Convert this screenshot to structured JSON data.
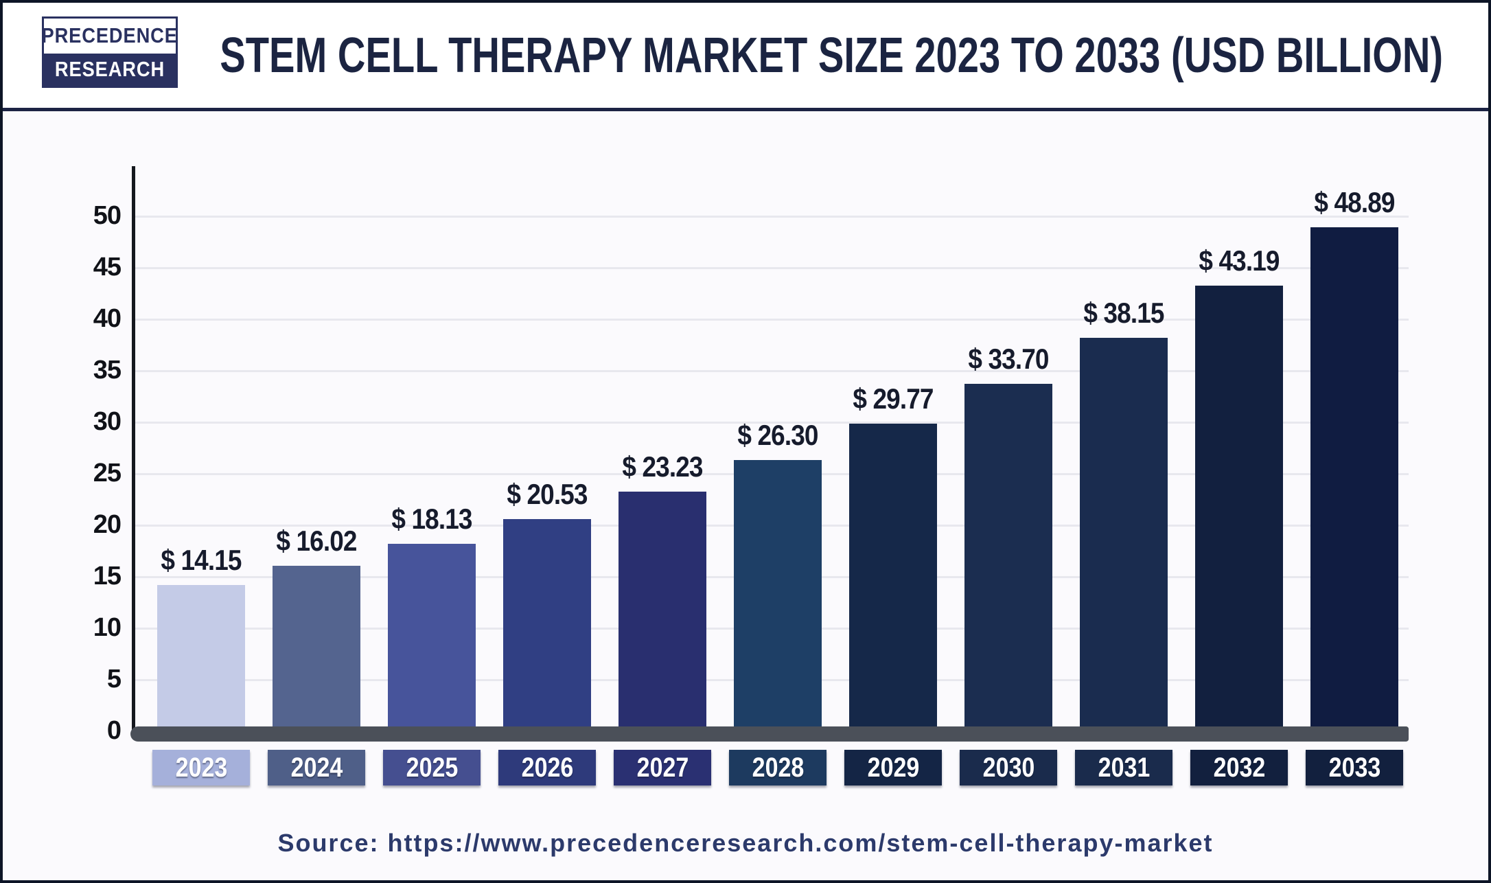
{
  "page": {
    "logo": {
      "line1": "PRECEDENCE",
      "line2": "RESEARCH"
    },
    "title": "STEM CELL THERAPY MARKET SIZE 2023 TO 2033 (USD BILLION)",
    "source": "Source: https://www.precedenceresearch.com/stem-cell-therapy-market"
  },
  "colors": {
    "border": "#0d1526",
    "header_rule": "#1c2344",
    "logo_navy": "#2a3160",
    "title_text": "#1b2441",
    "axis_line": "#15181e",
    "baseline": "#4b5059",
    "gridline": "#e8e8ee",
    "value_label_text": "#161b2c",
    "source_text": "#2c3a6b",
    "chart_background": "#fbfafd"
  },
  "chart_data": {
    "type": "bar",
    "title": "Stem Cell Therapy Market Size 2023 to 2033 (USD Billion)",
    "categories": [
      "2023",
      "2024",
      "2025",
      "2026",
      "2027",
      "2028",
      "2029",
      "2030",
      "2031",
      "2032",
      "2033"
    ],
    "values": [
      14.15,
      16.02,
      18.13,
      20.53,
      23.23,
      26.3,
      29.77,
      33.7,
      38.15,
      43.19,
      48.89
    ],
    "value_labels": [
      "$ 14.15",
      "$ 16.02",
      "$ 18.13",
      "$ 20.53",
      "$ 23.23",
      "$ 26.30",
      "$ 29.77",
      "$ 33.70",
      "$ 38.15",
      "$ 43.19",
      "$ 48.89"
    ],
    "ylabel": "",
    "xlabel": "",
    "ylim": [
      0,
      50
    ],
    "ytick_step": 5,
    "ytick_labels": [
      "50",
      "45",
      "40",
      "35",
      "30",
      "25",
      "20",
      "15",
      "10",
      "5",
      "0"
    ],
    "grid": "horizontal",
    "legend": "none",
    "bar_colors": [
      "#c4cbe7",
      "#54648f",
      "#47549b",
      "#303f83",
      "#292f6f",
      "#1e3f66",
      "#152849",
      "#1b2d50",
      "#1a2c4f",
      "#12203f",
      "#101c41"
    ],
    "xtick_box_colors": [
      "#a5b0da",
      "#4f5f88",
      "#454f90",
      "#2e3a7b",
      "#2a3072",
      "#1d3a5f",
      "#142545",
      "#1a2b4c",
      "#1a2b4c",
      "#12203e",
      "#12203e"
    ]
  }
}
